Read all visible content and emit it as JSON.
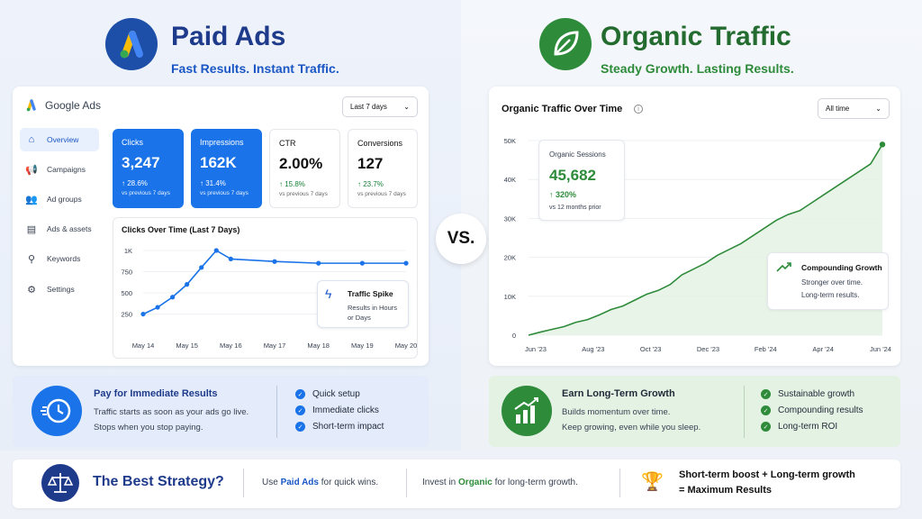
{
  "paid": {
    "title": "Paid Ads",
    "subtitle": "Fast Results. Instant Traffic.",
    "google_ads_label": "Google Ads",
    "range_select": "Last 7 days",
    "nav": [
      "Overview",
      "Campaigns",
      "Ad groups",
      "Ads & assets",
      "Keywords",
      "Settings"
    ],
    "metrics": [
      {
        "label": "Clicks",
        "value": "3,247",
        "change": "↑ 28.6%",
        "sub": "vs previous 7 days"
      },
      {
        "label": "Impressions",
        "value": "162K",
        "change": "↑ 31.4%",
        "sub": "vs previous 7 days"
      },
      {
        "label": "CTR",
        "value": "2.00%",
        "change": "↑ 15.8%",
        "sub": "vs previous 7 days"
      },
      {
        "label": "Conversions",
        "value": "127",
        "change": "↑ 23.7%",
        "sub": "vs previous 7 days"
      }
    ],
    "spike": {
      "title": "Traffic Spike",
      "body1": "Results in Hours",
      "body2": "or Days"
    },
    "benefit": {
      "title": "Pay for Immediate Results",
      "line1": "Traffic starts as soon as your ads go live.",
      "line2": "Stops when you stop paying."
    },
    "features": [
      "Quick setup",
      "Immediate clicks",
      "Short-term impact"
    ]
  },
  "vs": "VS.",
  "organic": {
    "title": "Organic Traffic",
    "subtitle": "Steady Growth. Lasting Results.",
    "range_select": "All time",
    "sessions": {
      "label": "Organic Sessions",
      "value": "45,682",
      "change": "↑ 320%",
      "sub": "vs 12 months prior"
    },
    "compounding": {
      "title": "Compounding Growth",
      "line1": "Stronger over time.",
      "line2": "Long-term results."
    },
    "benefit": {
      "title": "Earn Long-Term Growth",
      "line1": "Builds momentum over time.",
      "line2": "Keep growing, even while you sleep."
    },
    "features": [
      "Sustainable growth",
      "Compounding results",
      "Long-term ROI"
    ]
  },
  "footer": {
    "title": "The Best Strategy?",
    "use": "Use ",
    "paid_ads": "Paid Ads",
    "quick": " for quick wins.",
    "invest": "Invest in ",
    "organic": "Organic",
    "long": " for long-term growth.",
    "result1": "Short-term boost + Long-term growth",
    "result2": "= Maximum Results"
  },
  "colors": {
    "blue": "#1a73e8",
    "green": "#2e8b3a",
    "navy": "#1e3a8a"
  },
  "chart_data": [
    {
      "type": "line",
      "title": "Clicks Over Time (Last 7 Days)",
      "categories": [
        "May 14",
        "May 15",
        "May 16",
        "May 17",
        "May 18",
        "May 19",
        "May 20"
      ],
      "y_ticks": [
        "1K",
        "750",
        "500",
        "250"
      ],
      "x": [
        0,
        0.33,
        0.67,
        1,
        1.33,
        1.67,
        2,
        3,
        4,
        5,
        6
      ],
      "values": [
        250,
        330,
        450,
        600,
        800,
        1000,
        900,
        870,
        850,
        850,
        850
      ],
      "ylim": [
        150,
        1000
      ]
    },
    {
      "type": "area",
      "title": "Organic Traffic Over Time",
      "categories": [
        "Jun '23",
        "Aug '23",
        "Oct '23",
        "Dec '23",
        "Feb '24",
        "Apr '24",
        "Jun '24"
      ],
      "y_ticks": [
        "50K",
        "40K",
        "30K",
        "20K",
        "10K",
        "0"
      ],
      "x": [
        0,
        0.2,
        0.4,
        0.6,
        0.8,
        1,
        1.2,
        1.4,
        1.6,
        1.8,
        2,
        2.2,
        2.4,
        2.6,
        2.8,
        3,
        3.2,
        3.4,
        3.6,
        3.8,
        4,
        4.2,
        4.4,
        4.6,
        4.8,
        5,
        5.2,
        5.4,
        5.6,
        5.8,
        6
      ],
      "values": [
        0,
        800,
        1500,
        2200,
        3300,
        4000,
        5200,
        6600,
        7500,
        9000,
        10500,
        11500,
        13000,
        15500,
        17000,
        18500,
        20500,
        22000,
        23500,
        25500,
        27500,
        29500,
        31000,
        32000,
        34000,
        36000,
        38000,
        40000,
        42000,
        44000,
        49000
      ],
      "ylim": [
        0,
        50000
      ]
    }
  ]
}
